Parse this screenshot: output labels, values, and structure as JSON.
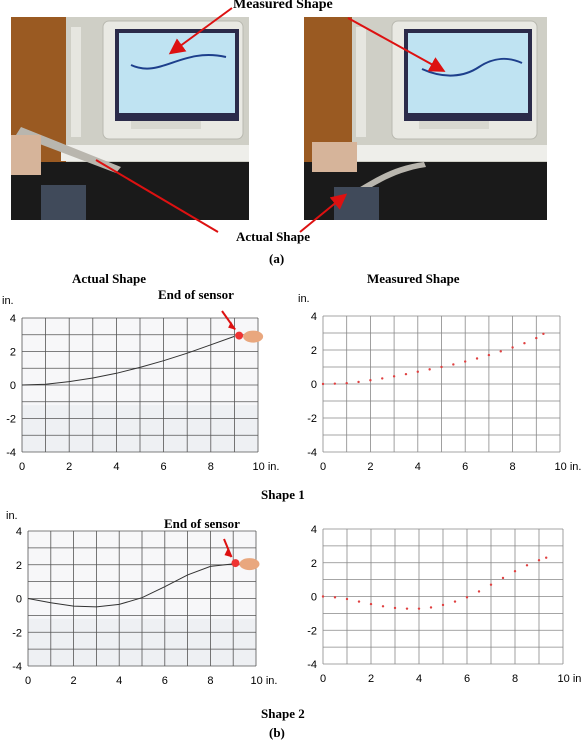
{
  "top_labels": {
    "measured_shape": "Measured Shape",
    "actual_shape": "Actual Shape",
    "panel_a": "(a)"
  },
  "section_b": {
    "actual_header": "Actual Shape",
    "measured_header": "Measured Shape",
    "end_of_sensor": "End of sensor",
    "shape1": "Shape 1",
    "shape2": "Shape 2",
    "panel_b": "(b)"
  },
  "axes": {
    "unit_y": "in.",
    "y_ticks": [
      "4",
      "2",
      "0",
      "-2",
      "-4"
    ],
    "x_ticks": [
      "0",
      "2",
      "4",
      "6",
      "8"
    ],
    "x_last": "10 in."
  },
  "colors": {
    "arrow": "#dd1111",
    "measured_points": "#e04040",
    "grid": "#444444",
    "screen": "#bfe3f2"
  },
  "chart_data": [
    {
      "type": "scatter",
      "name_ref": "shape1_measured",
      "xlim": [
        0,
        10
      ],
      "ylim": [
        -4,
        4
      ],
      "x": [
        0,
        0.5,
        1,
        1.5,
        2,
        2.5,
        3,
        3.5,
        4,
        4.5,
        5,
        5.5,
        6,
        6.5,
        7,
        7.5,
        8,
        8.5,
        9,
        9.3
      ],
      "y": [
        0,
        0.02,
        0.05,
        0.12,
        0.22,
        0.33,
        0.45,
        0.58,
        0.72,
        0.86,
        1.0,
        1.15,
        1.32,
        1.5,
        1.7,
        1.92,
        2.15,
        2.4,
        2.7,
        2.95
      ]
    },
    {
      "type": "scatter",
      "name_ref": "shape2_measured",
      "xlim": [
        0,
        10
      ],
      "ylim": [
        -4,
        4
      ],
      "x": [
        0,
        0.5,
        1,
        1.5,
        2,
        2.5,
        3,
        3.5,
        4,
        4.5,
        5,
        5.5,
        6,
        6.5,
        7,
        7.5,
        8,
        8.5,
        9,
        9.3
      ],
      "y": [
        0,
        -0.05,
        -0.15,
        -0.3,
        -0.45,
        -0.58,
        -0.68,
        -0.72,
        -0.72,
        -0.65,
        -0.5,
        -0.3,
        -0.05,
        0.3,
        0.7,
        1.1,
        1.5,
        1.85,
        2.15,
        2.3
      ]
    },
    {
      "type": "line",
      "name_ref": "shape1_actual",
      "xlim": [
        0,
        10
      ],
      "ylim": [
        -4,
        4
      ],
      "x": [
        0,
        1,
        2,
        3,
        4,
        5,
        6,
        7,
        8,
        9
      ],
      "y": [
        0,
        0.05,
        0.2,
        0.42,
        0.7,
        1.05,
        1.45,
        1.9,
        2.4,
        2.9
      ]
    },
    {
      "type": "line",
      "name_ref": "shape2_actual",
      "xlim": [
        0,
        10
      ],
      "ylim": [
        -4,
        4
      ],
      "x": [
        0,
        1,
        2,
        3,
        4,
        5,
        6,
        7,
        8,
        9
      ],
      "y": [
        0,
        -0.25,
        -0.45,
        -0.5,
        -0.35,
        0.05,
        0.7,
        1.4,
        1.9,
        2.05
      ]
    }
  ]
}
